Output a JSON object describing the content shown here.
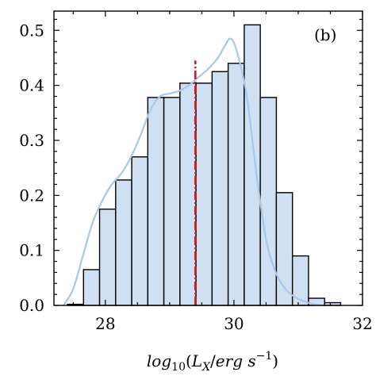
{
  "chart_data": {
    "type": "bar",
    "panel_label": "(b)",
    "xlabel": "log10(L_X / erg s^-1)",
    "xlabel_parts": {
      "log": "log",
      "sub10": "10",
      "open": "(",
      "L": "L",
      "subX": "X",
      "slash": "/",
      "erg": "erg",
      "space": " ",
      "s": "s",
      "sup": "−1",
      "close": ")"
    },
    "ylabel": "",
    "xlim": [
      27.2,
      32.0
    ],
    "ylim": [
      0.0,
      0.535
    ],
    "x_ticks": [
      28,
      30,
      32
    ],
    "x_tick_labels": [
      "28",
      "30",
      "32"
    ],
    "y_ticks": [
      0.0,
      0.1,
      0.2,
      0.3,
      0.4,
      0.5
    ],
    "y_tick_labels": [
      "0.0",
      "0.1",
      "0.2",
      "0.3",
      "0.4",
      "0.5"
    ],
    "bin_width": 0.25,
    "bin_edges_start": 27.41,
    "values": [
      0.002,
      0.065,
      0.175,
      0.228,
      0.27,
      0.378,
      0.378,
      0.404,
      0.404,
      0.425,
      0.44,
      0.51,
      0.378,
      0.205,
      0.09,
      0.013,
      0.005
    ],
    "kde": {
      "x": [
        27.35,
        27.5,
        27.65,
        27.8,
        27.95,
        28.1,
        28.25,
        28.4,
        28.55,
        28.7,
        28.85,
        29.0,
        29.15,
        29.3,
        29.45,
        29.6,
        29.75,
        29.85,
        29.95,
        30.05,
        30.2,
        30.35,
        30.5,
        30.65,
        30.8,
        30.95,
        31.1,
        31.25,
        31.4
      ],
      "y": [
        0.0,
        0.03,
        0.09,
        0.15,
        0.19,
        0.22,
        0.24,
        0.27,
        0.31,
        0.355,
        0.38,
        0.385,
        0.39,
        0.4,
        0.415,
        0.43,
        0.45,
        0.47,
        0.485,
        0.46,
        0.38,
        0.24,
        0.12,
        0.06,
        0.03,
        0.015,
        0.007,
        0.002,
        0.0
      ]
    },
    "vline_x": 29.4,
    "vline_ytop": 0.445,
    "grid": false,
    "colors": {
      "bar_fill": "#cfe0f3",
      "bar_edge": "#000000",
      "kde": "#a8c8ea",
      "vline": "#e0151b",
      "axis": "#000000"
    }
  }
}
